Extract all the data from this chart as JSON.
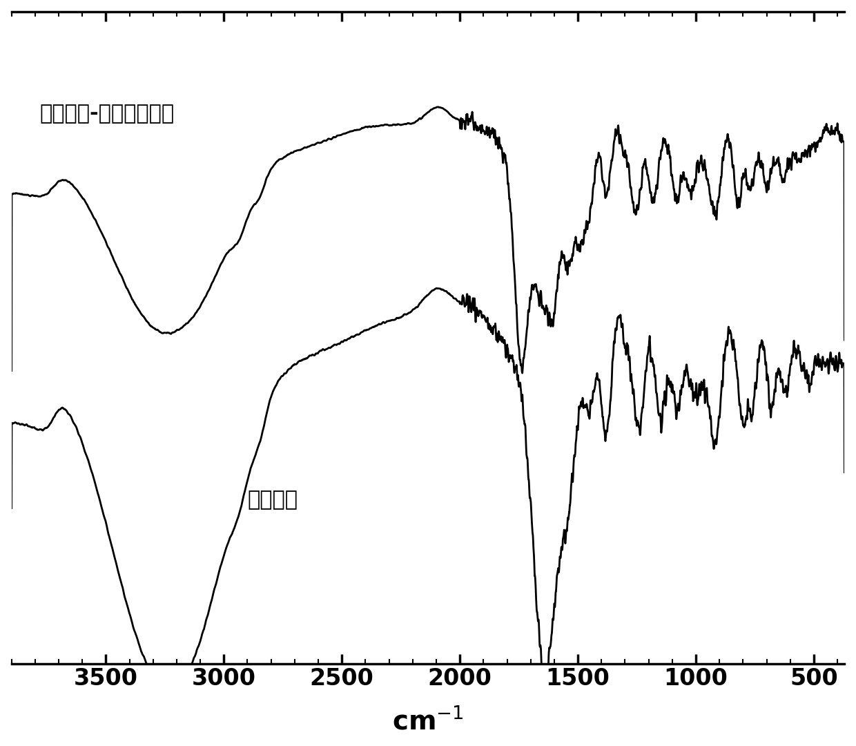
{
  "xlabel_display": "cm$^{-1}$",
  "xmin": 3900,
  "xmax": 370,
  "label_sericin": "丝胶蛋白",
  "label_composite": "丝胶蛋白-聚谷氨酸苄酯",
  "tick_positions": [
    3500,
    3000,
    2500,
    2000,
    1500,
    1000,
    500
  ],
  "line_color": "#000000",
  "background_color": "#ffffff",
  "fontsize_ticks": 24,
  "fontsize_label": 28,
  "fontsize_annotation": 22
}
